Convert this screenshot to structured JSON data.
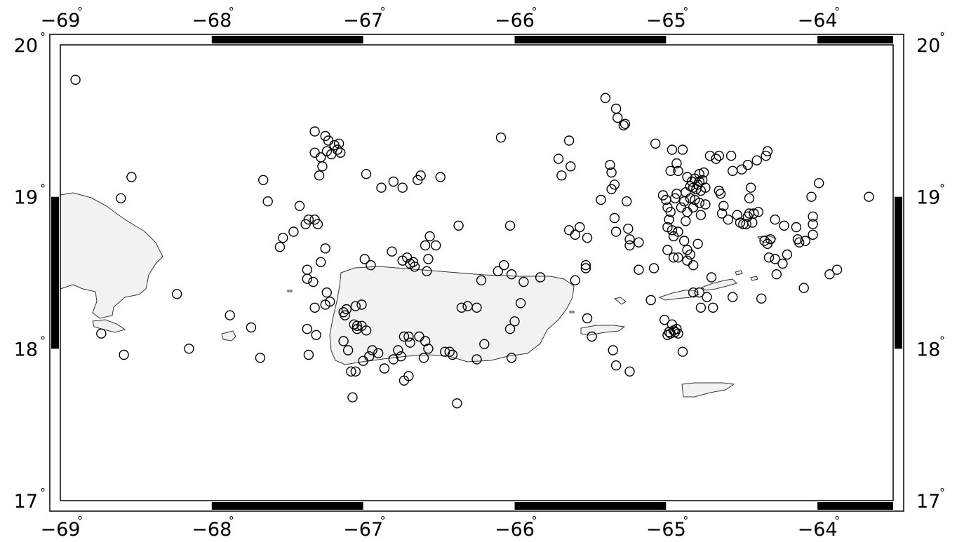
{
  "map": {
    "projection": "linear",
    "region": {
      "lon_min": -69,
      "lon_max": -63.5,
      "lat_min": 17,
      "lat_max": 20
    },
    "frame_style": "fancy",
    "land_color": "#f2f2f2",
    "symbol": "circle-open",
    "lon_ticks": [
      {
        "lon": -69,
        "label": "−69"
      },
      {
        "lon": -68,
        "label": "−68"
      },
      {
        "lon": -67,
        "label": "−67"
      },
      {
        "lon": -66,
        "label": "−66"
      },
      {
        "lon": -65,
        "label": "−65"
      },
      {
        "lon": -64,
        "label": "−64"
      }
    ],
    "lat_ticks": [
      {
        "lat": 20,
        "label": "20"
      },
      {
        "lat": 19,
        "label": "19"
      },
      {
        "lat": 18,
        "label": "18"
      },
      {
        "lat": 17,
        "label": "17"
      }
    ],
    "degree_symbol": "°"
  },
  "events": [
    [
      -68.9,
      19.77
    ],
    [
      -68.6,
      18.99
    ],
    [
      -68.53,
      19.13
    ],
    [
      -68.73,
      18.1
    ],
    [
      -68.58,
      17.96
    ],
    [
      -68.23,
      18.36
    ],
    [
      -68.15,
      18.0
    ],
    [
      -67.88,
      18.22
    ],
    [
      -67.74,
      18.14
    ],
    [
      -67.68,
      17.94
    ],
    [
      -67.66,
      19.11
    ],
    [
      -67.63,
      18.97
    ],
    [
      -67.55,
      18.67
    ],
    [
      -67.53,
      18.73
    ],
    [
      -67.46,
      18.77
    ],
    [
      -67.42,
      18.94
    ],
    [
      -67.38,
      18.82
    ],
    [
      -67.36,
      18.85
    ],
    [
      -67.32,
      18.85
    ],
    [
      -67.37,
      18.52
    ],
    [
      -67.37,
      18.46
    ],
    [
      -67.33,
      18.44
    ],
    [
      -67.32,
      18.27
    ],
    [
      -67.37,
      18.13
    ],
    [
      -67.31,
      18.09
    ],
    [
      -67.36,
      17.96
    ],
    [
      -67.32,
      19.43
    ],
    [
      -67.25,
      19.4
    ],
    [
      -67.23,
      19.37
    ],
    [
      -67.32,
      19.29
    ],
    [
      -67.28,
      19.26
    ],
    [
      -67.24,
      19.3
    ],
    [
      -67.21,
      19.28
    ],
    [
      -67.19,
      19.34
    ],
    [
      -67.17,
      19.31
    ],
    [
      -67.15,
      19.29
    ],
    [
      -67.16,
      19.35
    ],
    [
      -67.27,
      19.2
    ],
    [
      -67.29,
      19.14
    ],
    [
      -67.3,
      18.82
    ],
    [
      -67.25,
      18.66
    ],
    [
      -67.28,
      18.57
    ],
    [
      -67.24,
      18.37
    ],
    [
      -67.22,
      18.31
    ],
    [
      -67.25,
      18.29
    ],
    [
      -67.13,
      18.24
    ],
    [
      -67.12,
      18.22
    ],
    [
      -67.11,
      18.26
    ],
    [
      -67.05,
      18.28
    ],
    [
      -67.01,
      18.29
    ],
    [
      -67.06,
      18.16
    ],
    [
      -67.04,
      18.13
    ],
    [
      -67.01,
      18.15
    ],
    [
      -66.98,
      18.12
    ],
    [
      -67.04,
      18.15
    ],
    [
      -67.13,
      18.05
    ],
    [
      -67.1,
      17.99
    ],
    [
      -67.08,
      17.85
    ],
    [
      -67.05,
      17.85
    ],
    [
      -67.0,
      17.92
    ],
    [
      -66.96,
      17.95
    ],
    [
      -67.07,
      17.68
    ],
    [
      -66.94,
      17.99
    ],
    [
      -66.9,
      17.97
    ],
    [
      -66.86,
      17.87
    ],
    [
      -66.8,
      17.93
    ],
    [
      -66.77,
      17.99
    ],
    [
      -66.73,
      18.08
    ],
    [
      -66.7,
      18.08
    ],
    [
      -66.69,
      18.04
    ],
    [
      -66.75,
      17.95
    ],
    [
      -66.73,
      17.79
    ],
    [
      -66.7,
      17.82
    ],
    [
      -66.63,
      18.08
    ],
    [
      -66.59,
      18.05
    ],
    [
      -66.57,
      18.0
    ],
    [
      -66.6,
      17.94
    ],
    [
      -66.46,
      17.98
    ],
    [
      -66.43,
      17.98
    ],
    [
      -66.41,
      17.96
    ],
    [
      -66.38,
      17.64
    ],
    [
      -66.25,
      17.93
    ],
    [
      -66.2,
      18.03
    ],
    [
      -66.02,
      17.94
    ],
    [
      -66.95,
      18.55
    ],
    [
      -66.99,
      18.59
    ],
    [
      -66.81,
      18.64
    ],
    [
      -66.74,
      18.58
    ],
    [
      -66.71,
      18.6
    ],
    [
      -66.69,
      18.56
    ],
    [
      -66.67,
      18.57
    ],
    [
      -66.66,
      18.54
    ],
    [
      -66.59,
      18.68
    ],
    [
      -66.56,
      18.74
    ],
    [
      -66.52,
      18.68
    ],
    [
      -66.57,
      18.59
    ],
    [
      -66.58,
      18.51
    ],
    [
      -66.37,
      18.81
    ],
    [
      -66.35,
      18.27
    ],
    [
      -66.31,
      18.28
    ],
    [
      -66.25,
      18.27
    ],
    [
      -66.22,
      18.45
    ],
    [
      -66.11,
      18.51
    ],
    [
      -66.07,
      18.55
    ],
    [
      -66.03,
      18.81
    ],
    [
      -66.02,
      18.49
    ],
    [
      -66.03,
      18.13
    ],
    [
      -66.0,
      18.18
    ],
    [
      -65.96,
      18.3
    ],
    [
      -65.94,
      18.44
    ],
    [
      -65.83,
      18.47
    ],
    [
      -66.98,
      19.15
    ],
    [
      -66.88,
      19.06
    ],
    [
      -66.8,
      19.1
    ],
    [
      -66.74,
      19.06
    ],
    [
      -66.64,
      19.11
    ],
    [
      -66.62,
      19.14
    ],
    [
      -66.49,
      19.13
    ],
    [
      -66.09,
      19.39
    ],
    [
      -65.71,
      19.25
    ],
    [
      -65.69,
      19.14
    ],
    [
      -65.64,
      19.37
    ],
    [
      -65.63,
      19.2
    ],
    [
      -65.64,
      18.78
    ],
    [
      -65.6,
      18.75
    ],
    [
      -65.57,
      18.8
    ],
    [
      -65.52,
      18.73
    ],
    [
      -65.53,
      18.55
    ],
    [
      -65.53,
      18.53
    ],
    [
      -65.6,
      18.45
    ],
    [
      -65.52,
      18.2
    ],
    [
      -65.49,
      18.08
    ],
    [
      -65.43,
      18.98
    ],
    [
      -65.4,
      19.65
    ],
    [
      -65.33,
      19.58
    ],
    [
      -65.32,
      19.52
    ],
    [
      -65.27,
      19.48
    ],
    [
      -65.28,
      19.47
    ],
    [
      -65.37,
      19.21
    ],
    [
      -65.36,
      19.16
    ],
    [
      -65.34,
      19.08
    ],
    [
      -65.36,
      19.05
    ],
    [
      -65.34,
      18.86
    ],
    [
      -65.33,
      18.77
    ],
    [
      -65.26,
      18.97
    ],
    [
      -65.25,
      18.79
    ],
    [
      -65.24,
      18.72
    ],
    [
      -65.18,
      18.7
    ],
    [
      -65.24,
      18.68
    ],
    [
      -65.18,
      18.52
    ],
    [
      -65.35,
      17.99
    ],
    [
      -65.33,
      17.89
    ],
    [
      -65.24,
      17.85
    ],
    [
      -65.07,
      19.35
    ],
    [
      -65.02,
      19.01
    ],
    [
      -65.0,
      18.98
    ],
    [
      -64.94,
      18.99
    ],
    [
      -64.93,
      19.02
    ],
    [
      -64.99,
      18.93
    ],
    [
      -64.98,
      18.85
    ],
    [
      -64.97,
      18.9
    ],
    [
      -64.99,
      18.8
    ],
    [
      -64.96,
      18.78
    ],
    [
      -64.95,
      18.74
    ],
    [
      -64.92,
      18.77
    ],
    [
      -64.99,
      18.65
    ],
    [
      -64.95,
      18.6
    ],
    [
      -64.92,
      18.6
    ],
    [
      -65.08,
      18.53
    ],
    [
      -65.1,
      18.32
    ],
    [
      -64.96,
      19.31
    ],
    [
      -64.89,
      19.31
    ],
    [
      -64.97,
      19.17
    ],
    [
      -64.93,
      19.22
    ],
    [
      -64.92,
      19.17
    ],
    [
      -64.86,
      19.13
    ],
    [
      -64.83,
      19.1
    ],
    [
      -64.81,
      19.12
    ],
    [
      -64.79,
      19.08
    ],
    [
      -64.78,
      19.1
    ],
    [
      -64.84,
      19.07
    ],
    [
      -64.82,
      19.06
    ],
    [
      -64.8,
      19.05
    ],
    [
      -64.77,
      19.04
    ],
    [
      -64.74,
      19.06
    ],
    [
      -64.78,
      19.15
    ],
    [
      -64.75,
      19.16
    ],
    [
      -64.76,
      19.11
    ],
    [
      -64.87,
      19.03
    ],
    [
      -64.84,
      18.99
    ],
    [
      -64.81,
      18.98
    ],
    [
      -64.88,
      18.97
    ],
    [
      -64.9,
      18.93
    ],
    [
      -64.86,
      18.9
    ],
    [
      -64.87,
      18.84
    ],
    [
      -64.82,
      18.93
    ],
    [
      -64.77,
      18.88
    ],
    [
      -64.74,
      18.95
    ],
    [
      -64.78,
      18.96
    ],
    [
      -64.88,
      18.71
    ],
    [
      -64.86,
      18.65
    ],
    [
      -64.84,
      18.62
    ],
    [
      -64.86,
      18.58
    ],
    [
      -64.82,
      18.55
    ],
    [
      -64.79,
      18.69
    ],
    [
      -64.71,
      19.27
    ],
    [
      -64.67,
      19.25
    ],
    [
      -64.65,
      19.27
    ],
    [
      -64.57,
      19.27
    ],
    [
      -64.5,
      19.18
    ],
    [
      -64.46,
      19.21
    ],
    [
      -64.4,
      19.24
    ],
    [
      -64.34,
      19.27
    ],
    [
      -64.33,
      19.3
    ],
    [
      -64.56,
      19.17
    ],
    [
      -64.65,
      19.04
    ],
    [
      -64.64,
      19.02
    ],
    [
      -64.62,
      18.94
    ],
    [
      -64.63,
      18.89
    ],
    [
      -64.59,
      18.85
    ],
    [
      -64.53,
      18.88
    ],
    [
      -64.49,
      18.82
    ],
    [
      -64.45,
      18.89
    ],
    [
      -64.46,
      18.87
    ],
    [
      -64.47,
      18.82
    ],
    [
      -64.43,
      18.83
    ],
    [
      -64.42,
      18.89
    ],
    [
      -64.39,
      18.9
    ],
    [
      -64.44,
      19.06
    ],
    [
      -64.45,
      18.99
    ],
    [
      -64.51,
      18.83
    ],
    [
      -64.35,
      18.71
    ],
    [
      -64.33,
      18.69
    ],
    [
      -64.31,
      18.72
    ],
    [
      -64.28,
      18.85
    ],
    [
      -64.22,
      18.81
    ],
    [
      -64.14,
      18.8
    ],
    [
      -64.13,
      18.72
    ],
    [
      -64.12,
      18.7
    ],
    [
      -64.08,
      18.71
    ],
    [
      -64.03,
      18.82
    ],
    [
      -64.03,
      18.75
    ],
    [
      -64.03,
      18.87
    ],
    [
      -64.04,
      19.0
    ],
    [
      -64.32,
      18.6
    ],
    [
      -64.28,
      18.59
    ],
    [
      -64.23,
      18.56
    ],
    [
      -64.2,
      18.62
    ],
    [
      -64.27,
      18.49
    ],
    [
      -63.92,
      18.49
    ],
    [
      -63.87,
      18.52
    ],
    [
      -63.99,
      19.09
    ],
    [
      -63.66,
      19.0
    ],
    [
      -64.7,
      18.47
    ],
    [
      -64.78,
      18.37
    ],
    [
      -64.73,
      18.34
    ],
    [
      -64.82,
      18.37
    ],
    [
      -64.77,
      18.27
    ],
    [
      -64.69,
      18.27
    ],
    [
      -64.56,
      18.34
    ],
    [
      -64.37,
      18.33
    ],
    [
      -64.09,
      18.4
    ],
    [
      -65.01,
      18.19
    ],
    [
      -64.96,
      18.16
    ],
    [
      -64.93,
      18.13
    ],
    [
      -64.95,
      18.12
    ],
    [
      -64.94,
      18.11
    ],
    [
      -64.97,
      18.1
    ],
    [
      -64.98,
      18.11
    ],
    [
      -64.99,
      18.09
    ],
    [
      -64.92,
      18.1
    ],
    [
      -64.89,
      17.98
    ]
  ]
}
